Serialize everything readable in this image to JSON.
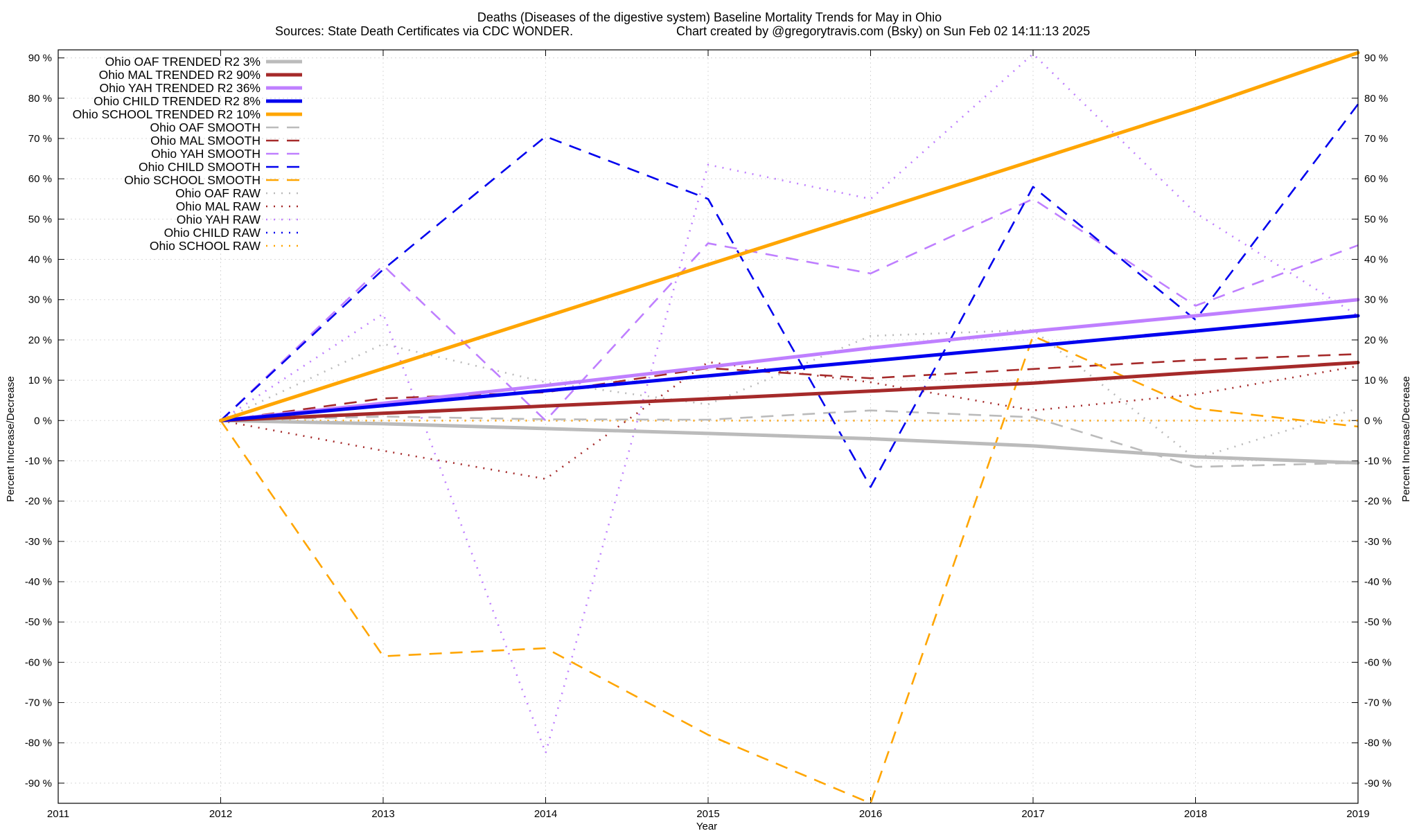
{
  "chart_data": {
    "type": "line",
    "title": "Deaths (Diseases of the digestive system)  Baseline Mortality Trends for May in Ohio",
    "subtitle_left": "Sources: State Death Certificates via CDC WONDER.",
    "subtitle_right": "Chart created by @gregorytravis.com (Bsky) on Sun Feb 02 14:11:13 2025",
    "xlabel": "Year",
    "ylabel_left": "Percent Increase/Decrease",
    "ylabel_right": "Percent Increase/Decrease",
    "xlim": [
      2011,
      2019
    ],
    "ylim": [
      -95,
      92
    ],
    "x_ticks": [
      "2011",
      "2012",
      "2013",
      "2014",
      "2015",
      "2016",
      "2017",
      "2018",
      "2019"
    ],
    "y_ticks": [
      "90 %",
      "80 %",
      "70 %",
      "60 %",
      "50 %",
      "40 %",
      "30 %",
      "20 %",
      "10 %",
      "0 %",
      "-10 %",
      "-20 %",
      "-30 %",
      "-40 %",
      "-50 %",
      "-60 %",
      "-70 %",
      "-80 %",
      "-90 %"
    ],
    "grid": true,
    "legend_position": "top-left",
    "x": [
      2012,
      2013,
      2014,
      2015,
      2016,
      2017,
      2018,
      2019
    ],
    "series": [
      {
        "name": "Ohio OAF TRENDED R2  3%",
        "style": "trend",
        "color": "#bbbbbb",
        "values": [
          0,
          -0.8,
          -2.0,
          -3.2,
          -4.5,
          -6.3,
          -9.0,
          -10.5
        ]
      },
      {
        "name": "Ohio MAL TRENDED R2  90%",
        "style": "trend",
        "color": "#a52a2a",
        "values": [
          0,
          1.8,
          3.6,
          5.4,
          7.3,
          9.3,
          11.9,
          14.4
        ]
      },
      {
        "name": "Ohio YAH TRENDED R2  36%",
        "style": "trend",
        "color": "#bf7fff",
        "values": [
          0,
          4.3,
          8.7,
          13.3,
          18.0,
          22.2,
          26.0,
          30.0
        ]
      },
      {
        "name": "Ohio CHILD TRENDED R2  8%",
        "style": "trend",
        "color": "#0000ee",
        "values": [
          0,
          3.7,
          7.4,
          11.1,
          14.8,
          18.5,
          22.2,
          26.0
        ]
      },
      {
        "name": "Ohio SCHOOL TRENDED R2  10%",
        "style": "trend",
        "color": "#ffa500",
        "values": [
          0,
          12.9,
          25.8,
          38.7,
          51.6,
          64.5,
          77.4,
          91.3
        ]
      },
      {
        "name": "Ohio OAF SMOOTH",
        "style": "smooth",
        "color": "#bbbbbb",
        "values": [
          0,
          1.0,
          0.3,
          0.2,
          2.5,
          0.8,
          -11.5,
          -10.5
        ]
      },
      {
        "name": "Ohio MAL SMOOTH",
        "style": "smooth",
        "color": "#a52a2a",
        "values": [
          0,
          5.5,
          7.0,
          13.0,
          10.5,
          12.8,
          15.0,
          16.5
        ]
      },
      {
        "name": "Ohio YAH SMOOTH",
        "style": "smooth",
        "color": "#bf7fff",
        "values": [
          0,
          38.5,
          0.0,
          44.0,
          36.5,
          55.0,
          28.5,
          43.5
        ]
      },
      {
        "name": "Ohio CHILD SMOOTH",
        "style": "smooth",
        "color": "#0000ee",
        "values": [
          0,
          37.5,
          70.5,
          55.0,
          -16.5,
          58.0,
          25.0,
          78.5
        ]
      },
      {
        "name": "Ohio SCHOOL SMOOTH",
        "style": "smooth",
        "color": "#ffa500",
        "values": [
          0,
          -58.5,
          -56.5,
          -78.0,
          -95.0,
          21.0,
          3.0,
          -1.5
        ]
      },
      {
        "name": "Ohio OAF RAW",
        "style": "raw",
        "color": "#bbbbbb",
        "values": [
          0,
          19.0,
          9.5,
          4.0,
          21.0,
          22.5,
          -9.5,
          3.0
        ]
      },
      {
        "name": "Ohio MAL RAW",
        "style": "raw",
        "color": "#a52a2a",
        "values": [
          0,
          -7.5,
          -14.5,
          14.5,
          9.5,
          2.5,
          6.5,
          13.5
        ]
      },
      {
        "name": "Ohio YAH RAW",
        "style": "raw",
        "color": "#bf7fff",
        "values": [
          0,
          26.5,
          -82.5,
          63.5,
          55.0,
          91.0,
          51.5,
          26.0
        ]
      },
      {
        "name": "Ohio CHILD RAW",
        "style": "raw",
        "color": "#0000ee",
        "values": [
          0,
          0,
          0,
          0,
          0,
          0,
          0,
          0
        ]
      },
      {
        "name": "Ohio SCHOOL RAW",
        "style": "raw",
        "color": "#ffa500",
        "values": [
          0,
          0,
          0,
          0,
          0,
          0,
          0,
          0
        ]
      }
    ]
  }
}
